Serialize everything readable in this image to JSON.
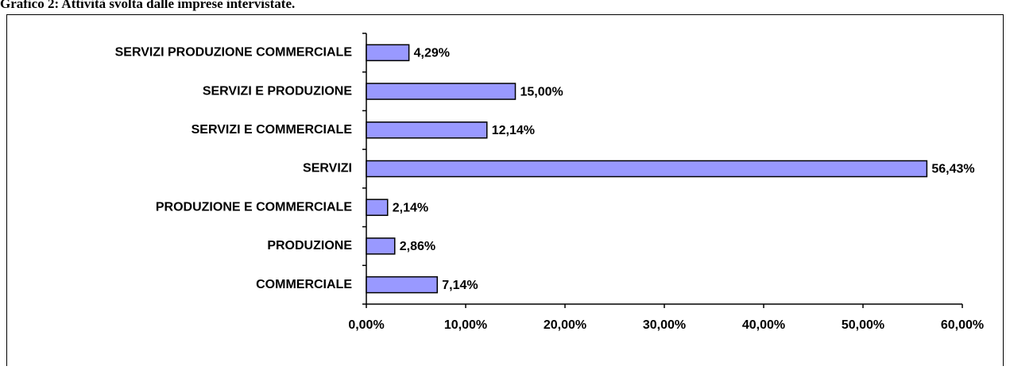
{
  "chart_data": {
    "type": "bar",
    "orientation": "horizontal",
    "title": "Grafico 2: Attività svolta dalle imprese intervistate.",
    "categories": [
      "SERVIZI PRODUZIONE COMMERCIALE",
      "SERVIZI E PRODUZIONE",
      "SERVIZI E COMMERCIALE",
      "SERVIZI",
      "PRODUZIONE E COMMERCIALE",
      "PRODUZIONE",
      "COMMERCIALE"
    ],
    "values": [
      4.29,
      15.0,
      12.14,
      56.43,
      2.14,
      2.86,
      7.14
    ],
    "value_labels": [
      "4,29%",
      "15,00%",
      "12,14%",
      "56,43%",
      "2,14%",
      "2,86%",
      "7,14%"
    ],
    "color": "#9999ff",
    "xlim": [
      0,
      60
    ],
    "xticks": [
      {
        "value": 0,
        "label": "0,00%"
      },
      {
        "value": 10,
        "label": "10,00%"
      },
      {
        "value": 20,
        "label": "20,00%"
      },
      {
        "value": 30,
        "label": "30,00%"
      },
      {
        "value": 40,
        "label": "40,00%"
      },
      {
        "value": 50,
        "label": "50,00%"
      },
      {
        "value": 60,
        "label": "60,00%"
      }
    ],
    "grid": false
  }
}
